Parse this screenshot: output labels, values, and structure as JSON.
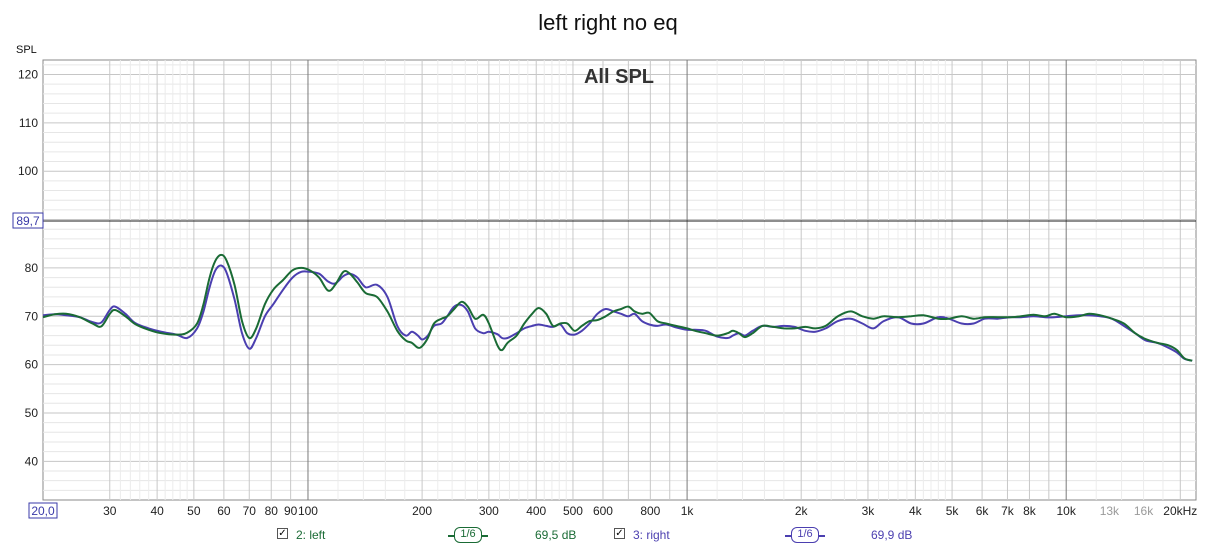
{
  "chart_data": {
    "type": "line",
    "title": "left right no eq",
    "inner_title": "All SPL",
    "ylabel": "SPL",
    "xscale": "log",
    "xlim": [
      20,
      22000
    ],
    "ylim": [
      32,
      123
    ],
    "grid": true,
    "reference_line": {
      "value": 89.7,
      "label": "89,7"
    },
    "x_start_label": "20,0",
    "y_ticks": [
      {
        "value": 120,
        "label": "120"
      },
      {
        "value": 110,
        "label": "110"
      },
      {
        "value": 100,
        "label": "100"
      },
      {
        "value": 80,
        "label": "80"
      },
      {
        "value": 70,
        "label": "70"
      },
      {
        "value": 60,
        "label": "60"
      },
      {
        "value": 50,
        "label": "50"
      },
      {
        "value": 40,
        "label": "40"
      }
    ],
    "x_ticks": [
      {
        "value": 30,
        "label": "30",
        "faint": false
      },
      {
        "value": 40,
        "label": "40",
        "faint": false
      },
      {
        "value": 50,
        "label": "50",
        "faint": false
      },
      {
        "value": 60,
        "label": "60",
        "faint": false
      },
      {
        "value": 70,
        "label": "70",
        "faint": false
      },
      {
        "value": 80,
        "label": "80",
        "faint": false
      },
      {
        "value": 90,
        "label": "90",
        "faint": false
      },
      {
        "value": 100,
        "label": "100",
        "faint": false
      },
      {
        "value": 200,
        "label": "200",
        "faint": false
      },
      {
        "value": 300,
        "label": "300",
        "faint": false
      },
      {
        "value": 400,
        "label": "400",
        "faint": false
      },
      {
        "value": 500,
        "label": "500",
        "faint": false
      },
      {
        "value": 600,
        "label": "600",
        "faint": false
      },
      {
        "value": 800,
        "label": "800",
        "faint": false
      },
      {
        "value": 1000,
        "label": "1k",
        "faint": false
      },
      {
        "value": 2000,
        "label": "2k",
        "faint": false
      },
      {
        "value": 3000,
        "label": "3k",
        "faint": false
      },
      {
        "value": 4000,
        "label": "4k",
        "faint": false
      },
      {
        "value": 5000,
        "label": "5k",
        "faint": false
      },
      {
        "value": 6000,
        "label": "6k",
        "faint": false
      },
      {
        "value": 7000,
        "label": "7k",
        "faint": false
      },
      {
        "value": 8000,
        "label": "8k",
        "faint": false
      },
      {
        "value": 10000,
        "label": "10k",
        "faint": false
      },
      {
        "value": 13000,
        "label": "13k",
        "faint": true
      },
      {
        "value": 16000,
        "label": "16k",
        "faint": true
      },
      {
        "value": 20000,
        "label": "20kHz",
        "faint": false
      }
    ],
    "series": [
      {
        "name": "2: left",
        "color": "#1a6b35",
        "smoothing": "1/6",
        "level": "69,5 dB",
        "points": [
          [
            20,
            69.8
          ],
          [
            21.5,
            70.4
          ],
          [
            23,
            70.5
          ],
          [
            25,
            69.8
          ],
          [
            27,
            68.5
          ],
          [
            28.5,
            67.9
          ],
          [
            30,
            70.5
          ],
          [
            31,
            71.3
          ],
          [
            33,
            70
          ],
          [
            35,
            68.4
          ],
          [
            38,
            67.2
          ],
          [
            41,
            66.5
          ],
          [
            45,
            66.2
          ],
          [
            48,
            66.6
          ],
          [
            51,
            68.5
          ],
          [
            53,
            72.5
          ],
          [
            55,
            78
          ],
          [
            57,
            81.5
          ],
          [
            59,
            82.7
          ],
          [
            61,
            81.5
          ],
          [
            64,
            76.5
          ],
          [
            67,
            69
          ],
          [
            70,
            65.5
          ],
          [
            73,
            67.5
          ],
          [
            77,
            72.5
          ],
          [
            81,
            75.5
          ],
          [
            86,
            77.5
          ],
          [
            91,
            79.5
          ],
          [
            96,
            80
          ],
          [
            101,
            79.5
          ],
          [
            107,
            78
          ],
          [
            113,
            75.3
          ],
          [
            118,
            76.5
          ],
          [
            124,
            79.2
          ],
          [
            129,
            78.8
          ],
          [
            135,
            77
          ],
          [
            142,
            74.8
          ],
          [
            152,
            74
          ],
          [
            162,
            71
          ],
          [
            172,
            67
          ],
          [
            181,
            65
          ],
          [
            188,
            64.5
          ],
          [
            195,
            63.5
          ],
          [
            200,
            63.8
          ],
          [
            207,
            65.5
          ],
          [
            215,
            68.5
          ],
          [
            225,
            69.5
          ],
          [
            233,
            70
          ],
          [
            243,
            71.5
          ],
          [
            254,
            73
          ],
          [
            264,
            72
          ],
          [
            276,
            69.5
          ],
          [
            290,
            70.3
          ],
          [
            300,
            68.5
          ],
          [
            316,
            64
          ],
          [
            325,
            63
          ],
          [
            336,
            64.5
          ],
          [
            355,
            66
          ],
          [
            372,
            68.5
          ],
          [
            390,
            70.5
          ],
          [
            406,
            71.7
          ],
          [
            425,
            70.5
          ],
          [
            443,
            68
          ],
          [
            463,
            68.5
          ],
          [
            483,
            68.5
          ],
          [
            505,
            67
          ],
          [
            528,
            68
          ],
          [
            553,
            69
          ],
          [
            580,
            69.2
          ],
          [
            610,
            70
          ],
          [
            640,
            71
          ],
          [
            670,
            71.5
          ],
          [
            700,
            72
          ],
          [
            727,
            71
          ],
          [
            760,
            70.5
          ],
          [
            795,
            70.7
          ],
          [
            835,
            69
          ],
          [
            880,
            68.5
          ],
          [
            935,
            68
          ],
          [
            1000,
            67.5
          ],
          [
            1050,
            67
          ],
          [
            1120,
            66.5
          ],
          [
            1200,
            66
          ],
          [
            1280,
            66.5
          ],
          [
            1320,
            67
          ],
          [
            1370,
            66.5
          ],
          [
            1420,
            65.7
          ],
          [
            1490,
            66.5
          ],
          [
            1580,
            68
          ],
          [
            1690,
            67.8
          ],
          [
            1800,
            67.5
          ],
          [
            1920,
            67.5
          ],
          [
            2050,
            67.8
          ],
          [
            2180,
            67.5
          ],
          [
            2320,
            68
          ],
          [
            2500,
            70
          ],
          [
            2700,
            71
          ],
          [
            2900,
            70
          ],
          [
            3100,
            69.5
          ],
          [
            3300,
            70
          ],
          [
            3600,
            69.8
          ],
          [
            3900,
            70
          ],
          [
            4200,
            70.2
          ],
          [
            4600,
            69.5
          ],
          [
            4900,
            69.5
          ],
          [
            5300,
            70
          ],
          [
            5700,
            69.5
          ],
          [
            6100,
            69.8
          ],
          [
            6600,
            69.8
          ],
          [
            7100,
            69.8
          ],
          [
            7600,
            70
          ],
          [
            8200,
            70.3
          ],
          [
            8800,
            70
          ],
          [
            9300,
            70.5
          ],
          [
            10000,
            69.8
          ],
          [
            10800,
            70
          ],
          [
            11500,
            70.5
          ],
          [
            12300,
            70.2
          ],
          [
            13200,
            69.5
          ],
          [
            14200,
            68.5
          ],
          [
            15200,
            66.5
          ],
          [
            16200,
            65.3
          ],
          [
            17400,
            64.5
          ],
          [
            18600,
            64
          ],
          [
            19600,
            63
          ],
          [
            20500,
            61.3
          ],
          [
            21500,
            60.8
          ]
        ]
      },
      {
        "name": "3: right",
        "color": "#4b3fb0",
        "smoothing": "1/6",
        "level": "69,9 dB",
        "points": [
          [
            20,
            70.2
          ],
          [
            21.5,
            70.4
          ],
          [
            23,
            70.2
          ],
          [
            25,
            69.8
          ],
          [
            27,
            68.8
          ],
          [
            28.5,
            68.7
          ],
          [
            30,
            71.3
          ],
          [
            31,
            72
          ],
          [
            33,
            70.5
          ],
          [
            35,
            68.6
          ],
          [
            38,
            67.5
          ],
          [
            41,
            66.8
          ],
          [
            45,
            66.2
          ],
          [
            48,
            65.5
          ],
          [
            51,
            67.5
          ],
          [
            53,
            71
          ],
          [
            55,
            76
          ],
          [
            57,
            79.5
          ],
          [
            59,
            80.5
          ],
          [
            61,
            79
          ],
          [
            64,
            73.5
          ],
          [
            67,
            66.5
          ],
          [
            70,
            63.3
          ],
          [
            73,
            65.5
          ],
          [
            77,
            70
          ],
          [
            81,
            72.5
          ],
          [
            86,
            75.5
          ],
          [
            91,
            78
          ],
          [
            96,
            79.2
          ],
          [
            101,
            79.2
          ],
          [
            107,
            78.8
          ],
          [
            113,
            77.2
          ],
          [
            118,
            76.8
          ],
          [
            124,
            78.3
          ],
          [
            129,
            78.8
          ],
          [
            135,
            78
          ],
          [
            142,
            76
          ],
          [
            152,
            76.5
          ],
          [
            162,
            74
          ],
          [
            172,
            68
          ],
          [
            181,
            66
          ],
          [
            188,
            66.8
          ],
          [
            195,
            66
          ],
          [
            200,
            65.2
          ],
          [
            207,
            66
          ],
          [
            215,
            68
          ],
          [
            225,
            68.5
          ],
          [
            233,
            70
          ],
          [
            243,
            72
          ],
          [
            254,
            72.3
          ],
          [
            264,
            71
          ],
          [
            276,
            67.5
          ],
          [
            290,
            66.5
          ],
          [
            300,
            66.8
          ],
          [
            316,
            66.3
          ],
          [
            325,
            65.5
          ],
          [
            336,
            65.5
          ],
          [
            355,
            66.5
          ],
          [
            372,
            67.5
          ],
          [
            390,
            68
          ],
          [
            406,
            68.3
          ],
          [
            425,
            68
          ],
          [
            443,
            67.8
          ],
          [
            463,
            68.3
          ],
          [
            483,
            66.5
          ],
          [
            505,
            66.2
          ],
          [
            528,
            67
          ],
          [
            553,
            68.5
          ],
          [
            580,
            70.5
          ],
          [
            610,
            71.5
          ],
          [
            640,
            71
          ],
          [
            670,
            70.5
          ],
          [
            700,
            70
          ],
          [
            727,
            70.5
          ],
          [
            760,
            69
          ],
          [
            795,
            68.3
          ],
          [
            835,
            68
          ],
          [
            880,
            68.3
          ],
          [
            935,
            67.7
          ],
          [
            1000,
            67.2
          ],
          [
            1050,
            67.2
          ],
          [
            1120,
            67
          ],
          [
            1200,
            65.8
          ],
          [
            1280,
            65.5
          ],
          [
            1320,
            66
          ],
          [
            1370,
            66.5
          ],
          [
            1420,
            66
          ],
          [
            1490,
            67
          ],
          [
            1580,
            68
          ],
          [
            1690,
            67.8
          ],
          [
            1800,
            68
          ],
          [
            1920,
            67.8
          ],
          [
            2050,
            67
          ],
          [
            2180,
            66.8
          ],
          [
            2320,
            67.5
          ],
          [
            2500,
            69
          ],
          [
            2700,
            69.5
          ],
          [
            2900,
            68.5
          ],
          [
            3100,
            67.5
          ],
          [
            3300,
            69
          ],
          [
            3600,
            69.8
          ],
          [
            3900,
            68.5
          ],
          [
            4200,
            68.5
          ],
          [
            4600,
            69.8
          ],
          [
            4900,
            69.5
          ],
          [
            5300,
            68.5
          ],
          [
            5700,
            68.5
          ],
          [
            6100,
            69.5
          ],
          [
            6600,
            69.5
          ],
          [
            7100,
            69.8
          ],
          [
            7600,
            69.8
          ],
          [
            8200,
            70
          ],
          [
            8800,
            69.8
          ],
          [
            9300,
            69.8
          ],
          [
            10000,
            70
          ],
          [
            10800,
            70.2
          ],
          [
            11500,
            70.2
          ],
          [
            12300,
            70
          ],
          [
            13200,
            69.5
          ],
          [
            14200,
            68
          ],
          [
            15200,
            66.5
          ],
          [
            16200,
            65
          ],
          [
            17400,
            64.5
          ],
          [
            18600,
            63.5
          ],
          [
            19600,
            62.5
          ],
          [
            20500,
            61.2
          ],
          [
            21500,
            60.8
          ]
        ]
      }
    ]
  },
  "legend": [
    {
      "checked": "✓",
      "label": "2: left",
      "smoothing": "1/6",
      "level": "69,5 dB",
      "color": "#1a6b35"
    },
    {
      "checked": "✓",
      "label": "3: right",
      "smoothing": "1/6",
      "level": "69,9 dB",
      "color": "#4b3fb0"
    }
  ]
}
